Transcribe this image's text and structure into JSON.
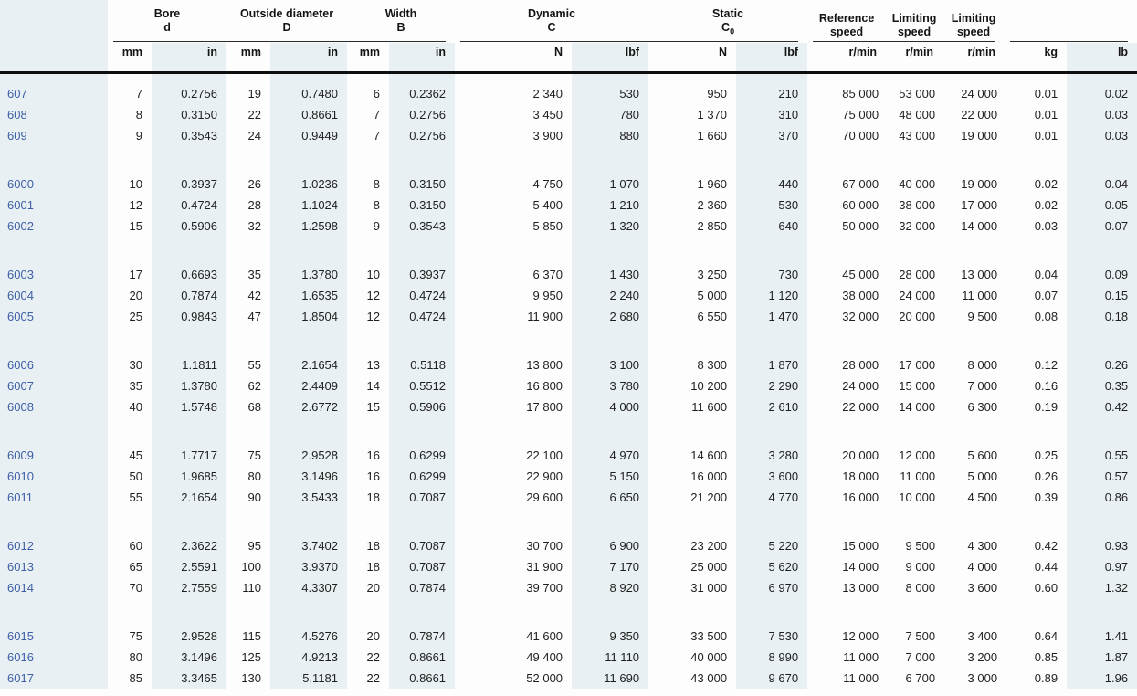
{
  "colors": {
    "designation_blue": "#3d5fa6",
    "column_band": "#e9f0f4",
    "text": "#1f1f1f"
  },
  "table": {
    "header_groups": [
      {
        "label": "Bore",
        "symbol": "d"
      },
      {
        "label": "Outside diameter",
        "symbol": "D"
      },
      {
        "label": "Width",
        "symbol": "B"
      },
      {
        "label": "Dynamic",
        "symbol": "C"
      },
      {
        "label": "Static",
        "symbol": "C",
        "symbol_sub": "0"
      },
      {
        "label": "Reference speed"
      },
      {
        "label": "Limiting speed"
      },
      {
        "label": "Limiting speed"
      }
    ],
    "units": [
      "mm",
      "in",
      "mm",
      "in",
      "mm",
      "in",
      "N",
      "lbf",
      "N",
      "lbf",
      "r/min",
      "r/min",
      "r/min",
      "kg",
      "lb"
    ],
    "groups": [
      {
        "rows": [
          {
            "designation": "607",
            "values": [
              "7",
              "0.2756",
              "19",
              "0.7480",
              "6",
              "0.2362",
              "2 340",
              "530",
              "950",
              "210",
              "85 000",
              "53 000",
              "24 000",
              "0.01",
              "0.02"
            ]
          },
          {
            "designation": "608",
            "values": [
              "8",
              "0.3150",
              "22",
              "0.8661",
              "7",
              "0.2756",
              "3 450",
              "780",
              "1 370",
              "310",
              "75 000",
              "48 000",
              "22 000",
              "0.01",
              "0.03"
            ]
          },
          {
            "designation": "609",
            "values": [
              "9",
              "0.3543",
              "24",
              "0.9449",
              "7",
              "0.2756",
              "3 900",
              "880",
              "1 660",
              "370",
              "70 000",
              "43 000",
              "19 000",
              "0.01",
              "0.03"
            ]
          }
        ]
      },
      {
        "rows": [
          {
            "designation": "6000",
            "values": [
              "10",
              "0.3937",
              "26",
              "1.0236",
              "8",
              "0.3150",
              "4 750",
              "1 070",
              "1 960",
              "440",
              "67 000",
              "40 000",
              "19 000",
              "0.02",
              "0.04"
            ]
          },
          {
            "designation": "6001",
            "values": [
              "12",
              "0.4724",
              "28",
              "1.1024",
              "8",
              "0.3150",
              "5 400",
              "1 210",
              "2 360",
              "530",
              "60 000",
              "38 000",
              "17 000",
              "0.02",
              "0.05"
            ]
          },
          {
            "designation": "6002",
            "values": [
              "15",
              "0.5906",
              "32",
              "1.2598",
              "9",
              "0.3543",
              "5 850",
              "1 320",
              "2 850",
              "640",
              "50 000",
              "32 000",
              "14 000",
              "0.03",
              "0.07"
            ]
          }
        ]
      },
      {
        "rows": [
          {
            "designation": "6003",
            "values": [
              "17",
              "0.6693",
              "35",
              "1.3780",
              "10",
              "0.3937",
              "6 370",
              "1 430",
              "3 250",
              "730",
              "45 000",
              "28 000",
              "13 000",
              "0.04",
              "0.09"
            ]
          },
          {
            "designation": "6004",
            "values": [
              "20",
              "0.7874",
              "42",
              "1.6535",
              "12",
              "0.4724",
              "9 950",
              "2 240",
              "5 000",
              "1 120",
              "38 000",
              "24 000",
              "11 000",
              "0.07",
              "0.15"
            ]
          },
          {
            "designation": "6005",
            "values": [
              "25",
              "0.9843",
              "47",
              "1.8504",
              "12",
              "0.4724",
              "11 900",
              "2 680",
              "6 550",
              "1 470",
              "32 000",
              "20 000",
              "9 500",
              "0.08",
              "0.18"
            ]
          }
        ]
      },
      {
        "rows": [
          {
            "designation": "6006",
            "values": [
              "30",
              "1.1811",
              "55",
              "2.1654",
              "13",
              "0.5118",
              "13 800",
              "3 100",
              "8 300",
              "1 870",
              "28 000",
              "17 000",
              "8 000",
              "0.12",
              "0.26"
            ]
          },
          {
            "designation": "6007",
            "values": [
              "35",
              "1.3780",
              "62",
              "2.4409",
              "14",
              "0.5512",
              "16 800",
              "3 780",
              "10 200",
              "2 290",
              "24 000",
              "15 000",
              "7 000",
              "0.16",
              "0.35"
            ]
          },
          {
            "designation": "6008",
            "values": [
              "40",
              "1.5748",
              "68",
              "2.6772",
              "15",
              "0.5906",
              "17 800",
              "4 000",
              "11 600",
              "2 610",
              "22 000",
              "14 000",
              "6 300",
              "0.19",
              "0.42"
            ]
          }
        ]
      },
      {
        "rows": [
          {
            "designation": "6009",
            "values": [
              "45",
              "1.7717",
              "75",
              "2.9528",
              "16",
              "0.6299",
              "22 100",
              "4 970",
              "14 600",
              "3 280",
              "20 000",
              "12 000",
              "5 600",
              "0.25",
              "0.55"
            ]
          },
          {
            "designation": "6010",
            "values": [
              "50",
              "1.9685",
              "80",
              "3.1496",
              "16",
              "0.6299",
              "22 900",
              "5 150",
              "16 000",
              "3 600",
              "18 000",
              "11 000",
              "5 000",
              "0.26",
              "0.57"
            ]
          },
          {
            "designation": "6011",
            "values": [
              "55",
              "2.1654",
              "90",
              "3.5433",
              "18",
              "0.7087",
              "29 600",
              "6 650",
              "21 200",
              "4 770",
              "16 000",
              "10 000",
              "4 500",
              "0.39",
              "0.86"
            ]
          }
        ]
      },
      {
        "rows": [
          {
            "designation": "6012",
            "values": [
              "60",
              "2.3622",
              "95",
              "3.7402",
              "18",
              "0.7087",
              "30 700",
              "6 900",
              "23 200",
              "5 220",
              "15 000",
              "9 500",
              "4 300",
              "0.42",
              "0.93"
            ]
          },
          {
            "designation": "6013",
            "values": [
              "65",
              "2.5591",
              "100",
              "3.9370",
              "18",
              "0.7087",
              "31 900",
              "7 170",
              "25 000",
              "5 620",
              "14 000",
              "9 000",
              "4 000",
              "0.44",
              "0.97"
            ]
          },
          {
            "designation": "6014",
            "values": [
              "70",
              "2.7559",
              "110",
              "4.3307",
              "20",
              "0.7874",
              "39 700",
              "8 920",
              "31 000",
              "6 970",
              "13 000",
              "8 000",
              "3 600",
              "0.60",
              "1.32"
            ]
          }
        ]
      },
      {
        "rows": [
          {
            "designation": "6015",
            "values": [
              "75",
              "2.9528",
              "115",
              "4.5276",
              "20",
              "0.7874",
              "41 600",
              "9 350",
              "33 500",
              "7 530",
              "12 000",
              "7 500",
              "3 400",
              "0.64",
              "1.41"
            ]
          },
          {
            "designation": "6016",
            "values": [
              "80",
              "3.1496",
              "125",
              "4.9213",
              "22",
              "0.8661",
              "49 400",
              "11 110",
              "40 000",
              "8 990",
              "11 000",
              "7 000",
              "3 200",
              "0.85",
              "1.87"
            ]
          },
          {
            "designation": "6017",
            "values": [
              "85",
              "3.3465",
              "130",
              "5.1181",
              "22",
              "0.8661",
              "52 000",
              "11 690",
              "43 000",
              "9 670",
              "11 000",
              "6 700",
              "3 000",
              "0.89",
              "1.96"
            ]
          }
        ]
      }
    ]
  }
}
